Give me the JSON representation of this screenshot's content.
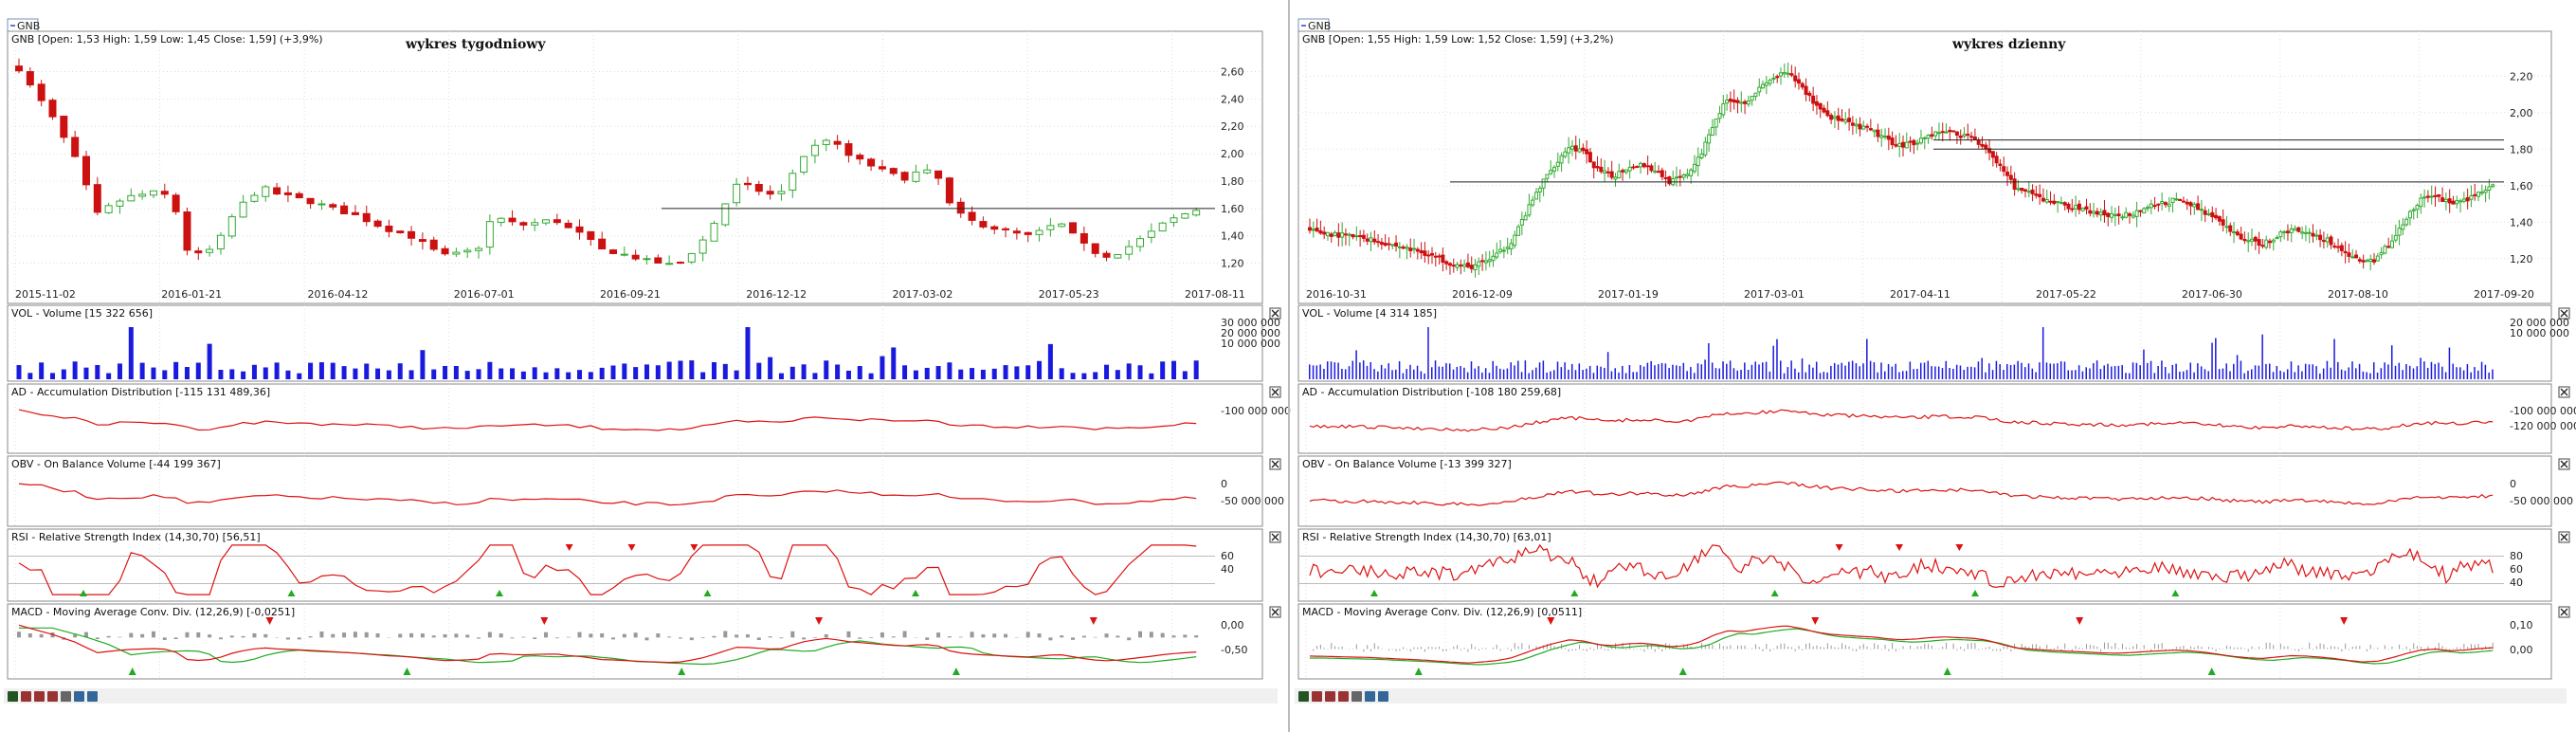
{
  "panels": [
    {
      "tab": "GNB",
      "annotation": "wykres tygodniowy",
      "price_header": "GNB [Open: 1,53  High: 1,59  Low: 1,45  Close: 1,59] (+3,9%)",
      "vol_header": "VOL - Volume [15 322 656]",
      "ad_header": "AD - Accumulation Distribution [-115 131 489,36]",
      "obv_header": "OBV - On Balance Volume [-44 199 367]",
      "rsi_header": "RSI - Relative Strength Index (14,30,70) [56,51]",
      "macd_header": "MACD - Moving Average Conv. Div. (12,26,9) [-0,0251]",
      "price_ticks": [
        "2,60",
        "2,40",
        "2,20",
        "2,00",
        "1,80",
        "1,60",
        "1,40",
        "1,20"
      ],
      "date_labels": [
        "2015-11-02",
        "2016-01-21",
        "2016-04-12",
        "2016-07-01",
        "2016-09-21",
        "2016-12-12",
        "2017-03-02",
        "2017-05-23",
        "2017-08-11"
      ],
      "vol_ticks": [
        "30 000 000",
        "20 000 000",
        "10 000 000"
      ],
      "ad_ticks": [
        "-100 000 000"
      ],
      "obv_ticks": [
        "0",
        "-50 000 000"
      ],
      "rsi_ticks": [
        "60",
        "40"
      ],
      "macd_ticks": [
        "0,00",
        "-0,50"
      ]
    },
    {
      "tab": "GNB",
      "annotation": "wykres dzienny",
      "price_header": "GNB [Open: 1,55  High: 1,59  Low: 1,52  Close: 1,59] (+3,2%)",
      "vol_header": "VOL - Volume [4 314 185]",
      "ad_header": "AD - Accumulation Distribution [-108 180 259,68]",
      "obv_header": "OBV - On Balance Volume [-13 399 327]",
      "rsi_header": "RSI - Relative Strength Index (14,30,70) [63,01]",
      "macd_header": "MACD - Moving Average Conv. Div. (12,26,9) [0,0511]",
      "price_ticks": [
        "2,20",
        "2,00",
        "1,80",
        "1,60",
        "1,40",
        "1,20"
      ],
      "date_labels": [
        "2016-10-31",
        "2016-12-09",
        "2017-01-19",
        "2017-03-01",
        "2017-04-11",
        "2017-05-22",
        "2017-06-30",
        "2017-08-10",
        "2017-09-20"
      ],
      "vol_ticks": [
        "20 000 000",
        "10 000 000"
      ],
      "ad_ticks": [
        "-100 000 000",
        "-120 000 000"
      ],
      "obv_ticks": [
        "0",
        "-50 000 000"
      ],
      "rsi_ticks": [
        "80",
        "60",
        "40"
      ],
      "macd_ticks": [
        "0,10",
        "0,00"
      ]
    }
  ],
  "chart_data": [
    {
      "type": "candlestick",
      "title": "wykres tygodniowy",
      "ylim": [
        1.1,
        2.7
      ],
      "close_path": [
        2.62,
        2.45,
        2.3,
        2.1,
        1.9,
        1.55,
        1.62,
        1.68,
        1.7,
        1.72,
        1.68,
        1.3,
        1.25,
        1.35,
        1.55,
        1.68,
        1.75,
        1.7,
        1.68,
        1.65,
        1.62,
        1.58,
        1.55,
        1.5,
        1.45,
        1.42,
        1.38,
        1.3,
        1.25,
        1.28,
        1.3,
        1.55,
        1.5,
        1.48,
        1.5,
        1.52,
        1.45,
        1.4,
        1.3,
        1.28,
        1.25,
        1.22,
        1.2,
        1.18,
        1.28,
        1.4,
        1.6,
        1.78,
        1.75,
        1.7,
        1.72,
        1.95,
        2.05,
        2.12,
        2.0,
        1.95,
        1.9,
        1.85,
        1.82,
        1.88,
        1.85,
        1.6,
        1.52,
        1.48,
        1.45,
        1.42,
        1.4,
        1.44,
        1.5,
        1.4,
        1.3,
        1.25,
        1.28,
        1.35,
        1.42,
        1.5,
        1.55,
        1.59
      ],
      "horizontal_levels": [
        1.6
      ]
    },
    {
      "type": "candlestick",
      "title": "wykres dzienny",
      "ylim": [
        1.1,
        2.3
      ],
      "close_path": [
        1.35,
        1.34,
        1.33,
        1.32,
        1.31,
        1.29,
        1.27,
        1.25,
        1.23,
        1.2,
        1.17,
        1.15,
        1.18,
        1.22,
        1.3,
        1.45,
        1.6,
        1.72,
        1.82,
        1.78,
        1.68,
        1.65,
        1.7,
        1.72,
        1.68,
        1.62,
        1.65,
        1.75,
        1.95,
        2.08,
        2.05,
        2.12,
        2.18,
        2.22,
        2.15,
        2.05,
        1.98,
        1.95,
        1.92,
        1.9,
        1.85,
        1.82,
        1.84,
        1.88,
        1.9,
        1.88,
        1.86,
        1.8,
        1.68,
        1.58,
        1.55,
        1.52,
        1.5,
        1.48,
        1.46,
        1.44,
        1.43,
        1.45,
        1.48,
        1.5,
        1.52,
        1.5,
        1.46,
        1.4,
        1.34,
        1.3,
        1.28,
        1.32,
        1.36,
        1.35,
        1.32,
        1.28,
        1.22,
        1.18,
        1.2,
        1.3,
        1.42,
        1.52,
        1.55,
        1.5,
        1.52,
        1.56,
        1.59
      ],
      "horizontal_levels": [
        1.62,
        1.8,
        1.85
      ]
    }
  ]
}
